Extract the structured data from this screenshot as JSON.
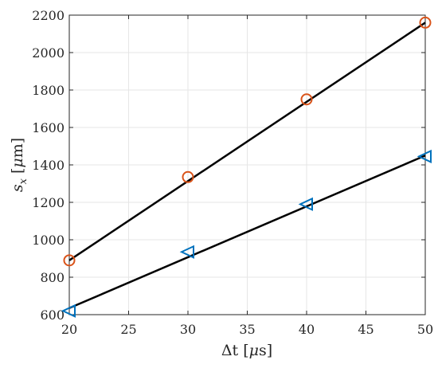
{
  "chart_data": {
    "type": "scatter",
    "title": "",
    "xlabel": "Δt [μs]",
    "ylabel": "s_x [μm]",
    "xlim": [
      20,
      50
    ],
    "ylim": [
      600,
      2200
    ],
    "xticks": [
      20,
      25,
      30,
      35,
      40,
      45,
      50
    ],
    "yticks": [
      600,
      800,
      1000,
      1200,
      1400,
      1600,
      1800,
      2000,
      2200
    ],
    "grid": true,
    "series": [
      {
        "marker": "circle",
        "color": "#D95319",
        "x": [
          20,
          30,
          40,
          50
        ],
        "y": [
          890,
          1335,
          1750,
          2160
        ],
        "fit_line": {
          "color": "#000000",
          "x": [
            20,
            50
          ],
          "y": [
            890,
            2160
          ]
        }
      },
      {
        "marker": "triangle-left",
        "color": "#0072BD",
        "x": [
          20,
          30,
          40,
          50
        ],
        "y": [
          620,
          935,
          1190,
          1445
        ],
        "fit_line": {
          "color": "#000000",
          "x": [
            20,
            50
          ],
          "y": [
            635,
            1450
          ]
        }
      }
    ]
  }
}
